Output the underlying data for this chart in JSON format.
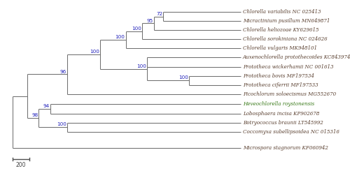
{
  "taxa": [
    {
      "name": "Chlorella variabilis NC 025413",
      "color": "#5a4030"
    },
    {
      "name": "Micractinium pusillum MN649871",
      "color": "#5a4030"
    },
    {
      "name": "Chlorella heliozoae KY629615",
      "color": "#5a4030"
    },
    {
      "name": "Chlorella sorokiniana NC 024626",
      "color": "#5a4030"
    },
    {
      "name": "Chlorella vulgaris MK948101",
      "color": "#5a4030"
    },
    {
      "name": "Auxenochlorella protothecoides KC843974",
      "color": "#5a4030"
    },
    {
      "name": "Prototheca wickerhamii NC 001613",
      "color": "#5a4030"
    },
    {
      "name": "Prototheca bovis MF197534",
      "color": "#5a4030"
    },
    {
      "name": "Prototheca ciferrii MF197533",
      "color": "#5a4030"
    },
    {
      "name": "Picochlorum soloecismus MG552670",
      "color": "#5a4030"
    },
    {
      "name": "Heveochlorella roystonensis",
      "color": "#3a7a1a"
    },
    {
      "name": "Lobosphaera incisa KP902678",
      "color": "#5a4030"
    },
    {
      "name": "Botryococcus braunii LT545992",
      "color": "#5a4030"
    },
    {
      "name": "Coccomyxa subellipsoidea NC 015316",
      "color": "#5a4030"
    },
    {
      "name": "Microspora stagnorum KF060942",
      "color": "#5a4030"
    }
  ],
  "line_color": "#707070",
  "bootstrap_color": "#2222bb",
  "scale_bar_label": "200",
  "background_color": "#ffffff"
}
